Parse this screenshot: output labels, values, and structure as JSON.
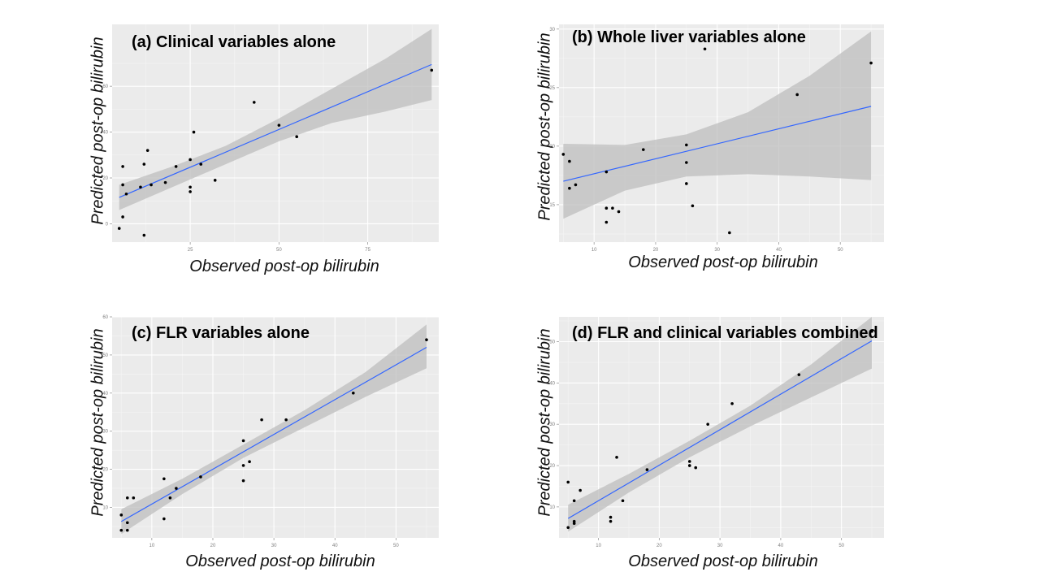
{
  "colors": {
    "panel_bg": "#ebebeb",
    "grid_major": "#ffffff",
    "grid_minor": "#f5f5f5",
    "ribbon": "#bdbdbd",
    "fit_line": "#3366ff",
    "point": "#000000",
    "tick_text": "#7f7f7f"
  },
  "chart_data": [
    {
      "type": "scatter",
      "title": "(a) Clinical variables alone",
      "xlabel": "Observed post-op bilirubin",
      "ylabel": "Predicted post-op bilirubin",
      "xlim": [
        3,
        95
      ],
      "ylim": [
        -8,
        87
      ],
      "xticks": [
        25,
        50,
        75
      ],
      "yticks": [
        0,
        20,
        40,
        60
      ],
      "x": [
        5,
        6,
        6,
        6,
        7,
        11,
        12,
        12,
        13,
        14,
        18,
        21,
        25,
        25,
        25,
        26,
        28,
        32,
        43,
        50,
        55,
        93
      ],
      "y": [
        -2,
        3,
        25,
        17,
        13,
        16,
        -5,
        26,
        32,
        17,
        18,
        25,
        16,
        14,
        28,
        40,
        26,
        19,
        53,
        43,
        38,
        67
      ],
      "fit": {
        "x": [
          5,
          93
        ],
        "y": [
          11.5,
          69.5
        ]
      },
      "ribbon": {
        "x": [
          5,
          20,
          35,
          50,
          65,
          80,
          93
        ],
        "upper": [
          17,
          25,
          34,
          46,
          59,
          72,
          85
        ],
        "lower": [
          6,
          16,
          26,
          36,
          44,
          49,
          54
        ]
      }
    },
    {
      "type": "scatter",
      "title": "(b) Whole liver variables alone",
      "xlabel": "Observed post-op bilirubin",
      "ylabel": "Predicted post-op bilirubin",
      "xlim": [
        4.3,
        57.1
      ],
      "ylim": [
        11.8,
        30.4
      ],
      "xticks": [
        10,
        20,
        30,
        40,
        50
      ],
      "yticks": [
        15,
        20,
        25,
        30
      ],
      "x": [
        5,
        6,
        6,
        7,
        12,
        12,
        12,
        14,
        13,
        18,
        25,
        25,
        25,
        26,
        28,
        32,
        43,
        55
      ],
      "y": [
        19.3,
        18.7,
        16.4,
        16.7,
        17.8,
        13.5,
        14.7,
        14.4,
        14.7,
        19.7,
        20.1,
        18.6,
        16.8,
        14.9,
        28.3,
        12.6,
        24.4,
        27.1
      ],
      "fit": {
        "x": [
          5,
          55
        ],
        "y": [
          17,
          23.4
        ]
      },
      "ribbon": {
        "x": [
          5,
          15,
          25,
          35,
          45,
          55
        ],
        "upper": [
          20.2,
          20.1,
          21,
          22.9,
          26,
          29.8
        ],
        "lower": [
          13.8,
          16.2,
          17.4,
          17.6,
          17.4,
          17.1
        ]
      }
    },
    {
      "type": "scatter",
      "title": "(c) FLR variables alone",
      "xlabel": "Observed post-op bilirubin",
      "ylabel": "Predicted post-op bilirubin",
      "xlim": [
        3.5,
        57
      ],
      "ylim": [
        2,
        60
      ],
      "xticks": [
        10,
        20,
        30,
        40,
        50
      ],
      "yticks": [
        10,
        20,
        30,
        40,
        50,
        60
      ],
      "x": [
        5,
        5,
        6,
        6,
        6,
        7,
        12,
        12,
        13,
        14,
        18,
        25,
        25,
        25,
        26,
        28,
        32,
        43,
        55
      ],
      "y": [
        8,
        4,
        6,
        4,
        12.5,
        12.5,
        17.5,
        7,
        12.5,
        15,
        18,
        27.5,
        21,
        17,
        22,
        33,
        33,
        40,
        54
      ],
      "fit": {
        "x": [
          5,
          55
        ],
        "y": [
          6.3,
          52
        ]
      },
      "ribbon": {
        "x": [
          5,
          15,
          25,
          35,
          45,
          55
        ],
        "upper": [
          9.5,
          17.5,
          26.5,
          35.5,
          45.5,
          58
        ],
        "lower": [
          3,
          13.5,
          23,
          31,
          39,
          46.5
        ]
      }
    },
    {
      "type": "scatter",
      "title": "(d) FLR and clinical variables combined",
      "xlabel": "Observed post-op bilirubin",
      "ylabel": "Predicted post-op bilirubin",
      "xlim": [
        3.5,
        57
      ],
      "ylim": [
        2.5,
        56
      ],
      "xticks": [
        10,
        20,
        30,
        40,
        50
      ],
      "yticks": [
        10,
        20,
        30,
        40,
        50
      ],
      "x": [
        5,
        5,
        6,
        6,
        6,
        7,
        12,
        12,
        13,
        14,
        18,
        25,
        25,
        25,
        26,
        28,
        32,
        43,
        55
      ],
      "y": [
        16,
        5,
        11.5,
        6.5,
        6,
        14,
        7.5,
        6.5,
        22,
        11.5,
        19,
        21,
        20,
        20,
        19.5,
        30,
        35,
        42,
        52.5
      ],
      "fit": {
        "x": [
          5,
          55
        ],
        "y": [
          7.2,
          50.2
        ]
      },
      "ribbon": {
        "x": [
          5,
          15,
          25,
          35,
          45,
          55
        ],
        "upper": [
          10.5,
          18,
          26,
          34.5,
          44.5,
          56
        ],
        "lower": [
          4,
          13.5,
          22,
          29.5,
          36.5,
          43.5
        ]
      }
    }
  ]
}
